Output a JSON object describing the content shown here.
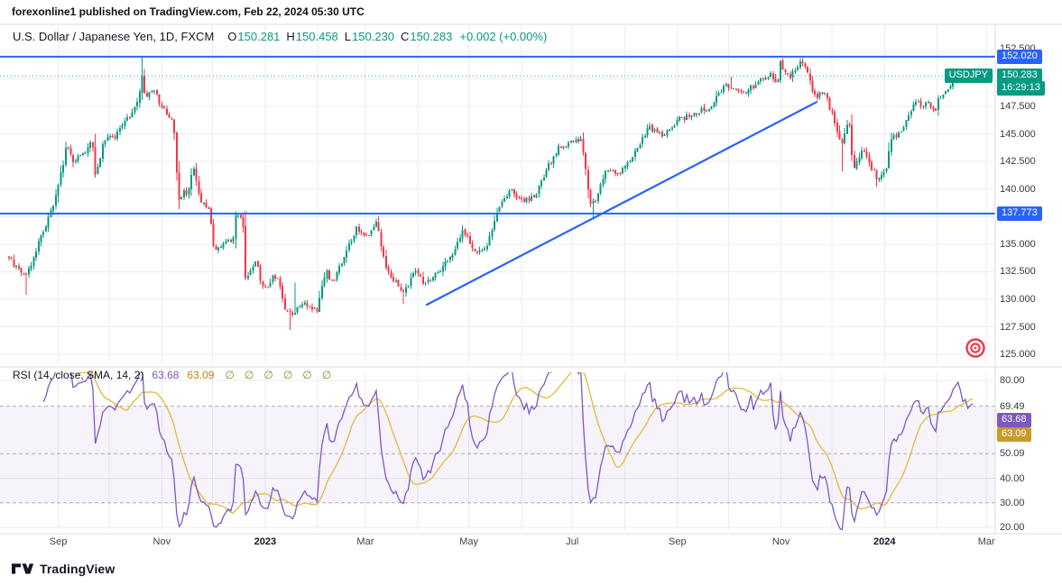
{
  "attribution": "forexonline1 published on TradingView.com, Feb 22, 2024 05:30 UTC",
  "symbol_header": {
    "title": "U.S. Dollar / Japanese Yen, 1D, FXCM",
    "ohlc": [
      {
        "label": "O",
        "value": "150.281"
      },
      {
        "label": "H",
        "value": "150.458"
      },
      {
        "label": "L",
        "value": "150.230"
      },
      {
        "label": "C",
        "value": "150.283"
      }
    ],
    "change": "+0.002 (+0.00%)"
  },
  "colors": {
    "up": "#089981",
    "down": "#F23645",
    "line_blue": "#2962FF",
    "rsi_purple": "#7E57C2",
    "rsi_yellow": "#E2B93B",
    "rsi_yellow_badge": "#C99A2C",
    "target_red": "#F23645",
    "grid": "#E9EDF4"
  },
  "footer": {
    "logo_text": "TradingView"
  },
  "chart_data": {
    "type": "candlestick",
    "symbol": "USDJPY",
    "timeframe": "1D",
    "candle_count": 392,
    "t_end": 0.9844,
    "price_axis": {
      "labels": [
        "152.500",
        "147.500",
        "145.000",
        "142.500",
        "140.000",
        "135.000",
        "132.500",
        "130.000",
        "127.500",
        "125.000"
      ],
      "gridlines": [
        152.5,
        150,
        147.5,
        145,
        142.5,
        140,
        137.5,
        135,
        132.5,
        130,
        127.5,
        125
      ],
      "min": 125.0,
      "max": 152.5
    },
    "levels": [
      {
        "label": "152.020",
        "price": 152.02
      },
      {
        "label": "137.773",
        "price": 137.773
      }
    ],
    "trendline": {
      "from_t": 0.4267,
      "from_price": 129.5,
      "to_t": 0.8249,
      "to_price": 147.9
    },
    "last": {
      "symbol": "USDJPY",
      "label": "150.283",
      "price": 150.283,
      "countdown": "16:29:13"
    },
    "time_axis": [
      {
        "label": "Sep",
        "t": 0.0503
      },
      {
        "label": "Nov",
        "t": 0.156
      },
      {
        "label": "2023",
        "t": 0.2617,
        "strong": true
      },
      {
        "label": "Mar",
        "t": 0.364
      },
      {
        "label": "May",
        "t": 0.4697
      },
      {
        "label": "Jul",
        "t": 0.5753
      },
      {
        "label": "Sep",
        "t": 0.6828
      },
      {
        "label": "Nov",
        "t": 0.7886
      },
      {
        "label": "2024",
        "t": 0.8943,
        "strong": true
      },
      {
        "label": "Mar",
        "t": 0.9983
      }
    ],
    "month_gridlines_t": [
      0.0503,
      0.1022,
      0.156,
      0.208,
      0.2617,
      0.3154,
      0.364,
      0.4177,
      0.4697,
      0.5234,
      0.5753,
      0.6291,
      0.6828,
      0.7348,
      0.7886,
      0.8406,
      0.8943,
      0.948,
      0.9983
    ],
    "price_anchors": [
      [
        0.0,
        133.8
      ],
      [
        0.007,
        132.9
      ],
      [
        0.017,
        131.9
      ],
      [
        0.028,
        134.6
      ],
      [
        0.04,
        137.2
      ],
      [
        0.05,
        140.1
      ],
      [
        0.059,
        144.0
      ],
      [
        0.066,
        142.5
      ],
      [
        0.08,
        143.6
      ],
      [
        0.085,
        144.6
      ],
      [
        0.088,
        141.0
      ],
      [
        0.097,
        144.4
      ],
      [
        0.107,
        144.7
      ],
      [
        0.125,
        146.9
      ],
      [
        0.134,
        148.8
      ],
      [
        0.1368,
        150.9
      ],
      [
        0.139,
        147.8
      ],
      [
        0.143,
        149.0
      ],
      [
        0.15,
        148.7
      ],
      [
        0.156,
        147.4
      ],
      [
        0.162,
        146.7
      ],
      [
        0.168,
        146.3
      ],
      [
        0.1716,
        140.8
      ],
      [
        0.173,
        138.8
      ],
      [
        0.18,
        140.1
      ],
      [
        0.182,
        139.5
      ],
      [
        0.1885,
        141.9
      ],
      [
        0.1955,
        139.0
      ],
      [
        0.2045,
        138.2
      ],
      [
        0.208,
        135.4
      ],
      [
        0.2097,
        134.3
      ],
      [
        0.2288,
        135.5
      ],
      [
        0.2322,
        137.8
      ],
      [
        0.239,
        136.9
      ],
      [
        0.241,
        131.7
      ],
      [
        0.253,
        133.5
      ],
      [
        0.258,
        131.1
      ],
      [
        0.265,
        131.0
      ],
      [
        0.27,
        132.1
      ],
      [
        0.2756,
        131.9
      ],
      [
        0.281,
        129.0
      ],
      [
        0.288,
        128.6
      ],
      [
        0.291,
        128.9
      ],
      [
        0.303,
        129.6
      ],
      [
        0.315,
        128.9
      ],
      [
        0.319,
        131.2
      ],
      [
        0.324,
        132.6
      ],
      [
        0.331,
        131.4
      ],
      [
        0.343,
        134.1
      ],
      [
        0.355,
        136.4
      ],
      [
        0.367,
        135.8
      ],
      [
        0.376,
        137.3
      ],
      [
        0.3796,
        135.0
      ],
      [
        0.3847,
        133.2
      ],
      [
        0.3917,
        131.8
      ],
      [
        0.4038,
        130.7
      ],
      [
        0.416,
        132.8
      ],
      [
        0.4246,
        131.3
      ],
      [
        0.4385,
        132.5
      ],
      [
        0.4523,
        134.1
      ],
      [
        0.4645,
        136.3
      ],
      [
        0.4749,
        134.2
      ],
      [
        0.487,
        134.5
      ],
      [
        0.4974,
        137.6
      ],
      [
        0.5113,
        140.0
      ],
      [
        0.5234,
        138.8
      ],
      [
        0.5373,
        139.4
      ],
      [
        0.5494,
        141.8
      ],
      [
        0.5615,
        143.7
      ],
      [
        0.5737,
        144.3
      ],
      [
        0.5841,
        144.6
      ],
      [
        0.5945,
        138.5
      ],
      [
        0.5979,
        138.8
      ],
      [
        0.61,
        141.8
      ],
      [
        0.6222,
        141.2
      ],
      [
        0.6326,
        142.5
      ],
      [
        0.6534,
        145.6
      ],
      [
        0.6672,
        144.8
      ],
      [
        0.6829,
        146.2
      ],
      [
        0.7002,
        146.8
      ],
      [
        0.7175,
        147.6
      ],
      [
        0.7314,
        149.4
      ],
      [
        0.7383,
        149.1
      ],
      [
        0.7504,
        148.7
      ],
      [
        0.7678,
        149.9
      ],
      [
        0.7782,
        150.4
      ],
      [
        0.7851,
        149.1
      ],
      [
        0.7868,
        151.7
      ],
      [
        0.7972,
        150.1
      ],
      [
        0.8093,
        151.7
      ],
      [
        0.8145,
        150.7
      ],
      [
        0.8232,
        148.4
      ],
      [
        0.8336,
        148.8
      ],
      [
        0.8405,
        146.8
      ],
      [
        0.8509,
        144.1
      ],
      [
        0.8579,
        146.4
      ],
      [
        0.8614,
        142.9
      ],
      [
        0.863,
        141.9
      ],
      [
        0.8717,
        143.8
      ],
      [
        0.8786,
        142.4
      ],
      [
        0.8873,
        140.9
      ],
      [
        0.896,
        141.9
      ],
      [
        0.9012,
        144.6
      ],
      [
        0.9116,
        145.3
      ],
      [
        0.9254,
        148.1
      ],
      [
        0.9341,
        147.5
      ],
      [
        0.9376,
        147.9
      ],
      [
        0.9462,
        146.9
      ],
      [
        0.9497,
        148.4
      ],
      [
        0.9549,
        148.7
      ],
      [
        0.9618,
        149.4
      ],
      [
        0.9688,
        150.8
      ],
      [
        0.974,
        150.2
      ],
      [
        0.9792,
        150.1
      ],
      [
        0.9844,
        150.283
      ]
    ],
    "wick_overrides": [
      {
        "t": 0.017,
        "low": 130.4
      },
      {
        "t": 0.1368,
        "high": 152.0
      },
      {
        "t": 0.288,
        "low": 127.2
      },
      {
        "t": 0.291,
        "high": 131.5
      },
      {
        "t": 0.4038,
        "low": 129.6
      },
      {
        "t": 0.5979,
        "low": 137.3
      },
      {
        "t": 0.7383,
        "high": 150.2
      },
      {
        "t": 0.8093,
        "high": 151.9
      },
      {
        "t": 0.8509,
        "low": 141.6
      },
      {
        "t": 0.8873,
        "low": 140.2
      }
    ],
    "rsi": {
      "title": "RSI (14, close, SMA, 14, 2)",
      "value": "63.68",
      "ma_value": "63.09",
      "empty_values": [
        "∅",
        "∅",
        "∅",
        "∅",
        "∅",
        "∅"
      ],
      "scale_labels": [
        "80.00",
        "69.49",
        "50.09",
        "40.00",
        "30.00",
        "20.00"
      ],
      "badges": [
        {
          "value": "63.68",
          "level": 63.68,
          "kind": "rsi"
        },
        {
          "value": "63.09",
          "level": 63.09,
          "kind": "ma"
        }
      ],
      "band": [
        30,
        69.49
      ],
      "dashed_levels": [
        69.49,
        50.09,
        30
      ],
      "solid_gridlines": [
        80,
        40,
        20
      ],
      "range": [
        20,
        80
      ]
    }
  }
}
